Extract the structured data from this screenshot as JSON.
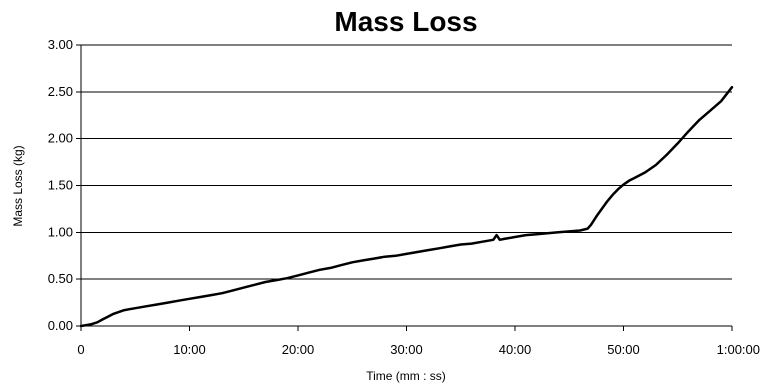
{
  "chart_data": {
    "type": "line",
    "title": "Mass Loss",
    "xlabel": "Time (mm : ss)",
    "ylabel": "Mass Loss (kg)",
    "xlim": [
      0,
      60
    ],
    "ylim": [
      0,
      3
    ],
    "grid": {
      "horizontal": true,
      "vertical": false
    },
    "legend": "none",
    "line_color": "#000000",
    "x_ticks": [
      {
        "value": 0,
        "label": "0"
      },
      {
        "value": 10,
        "label": "10:00"
      },
      {
        "value": 20,
        "label": "20:00"
      },
      {
        "value": 30,
        "label": "30:00"
      },
      {
        "value": 40,
        "label": "40:00"
      },
      {
        "value": 50,
        "label": "50:00"
      },
      {
        "value": 60,
        "label": "1:00:00"
      }
    ],
    "y_ticks": [
      {
        "value": 0,
        "label": "0.00"
      },
      {
        "value": 0.5,
        "label": "0.50"
      },
      {
        "value": 1,
        "label": "1.00"
      },
      {
        "value": 1.5,
        "label": "1.50"
      },
      {
        "value": 2,
        "label": "2.00"
      },
      {
        "value": 2.5,
        "label": "2.50"
      },
      {
        "value": 3,
        "label": "3.00"
      }
    ],
    "series": [
      {
        "x": [
          0,
          0.5,
          1,
          1.5,
          2,
          2.5,
          3,
          3.5,
          4,
          5,
          6,
          7,
          8,
          9,
          10,
          11,
          12,
          13,
          14,
          15,
          16,
          17,
          18,
          19,
          20,
          21,
          22,
          23,
          24,
          25,
          26,
          27,
          28,
          29,
          30,
          31,
          32,
          33,
          34,
          35,
          36,
          37,
          38,
          38.3,
          38.6,
          39,
          40,
          41,
          42,
          43,
          44,
          45,
          46,
          46.7,
          47,
          47.5,
          48,
          48.5,
          49,
          49.5,
          50,
          50.5,
          51,
          52,
          53,
          54,
          55,
          56,
          57,
          58,
          59,
          60
        ],
        "y": [
          0,
          0.01,
          0.02,
          0.04,
          0.07,
          0.1,
          0.13,
          0.15,
          0.17,
          0.19,
          0.21,
          0.23,
          0.25,
          0.27,
          0.29,
          0.31,
          0.33,
          0.35,
          0.38,
          0.41,
          0.44,
          0.47,
          0.49,
          0.51,
          0.54,
          0.57,
          0.6,
          0.62,
          0.65,
          0.68,
          0.7,
          0.72,
          0.74,
          0.75,
          0.77,
          0.79,
          0.81,
          0.83,
          0.85,
          0.87,
          0.88,
          0.9,
          0.92,
          0.97,
          0.92,
          0.93,
          0.95,
          0.97,
          0.98,
          0.99,
          1.0,
          1.01,
          1.02,
          1.04,
          1.08,
          1.17,
          1.25,
          1.33,
          1.4,
          1.46,
          1.51,
          1.55,
          1.58,
          1.64,
          1.72,
          1.83,
          1.95,
          2.08,
          2.2,
          2.3,
          2.4,
          2.55
        ]
      }
    ]
  }
}
